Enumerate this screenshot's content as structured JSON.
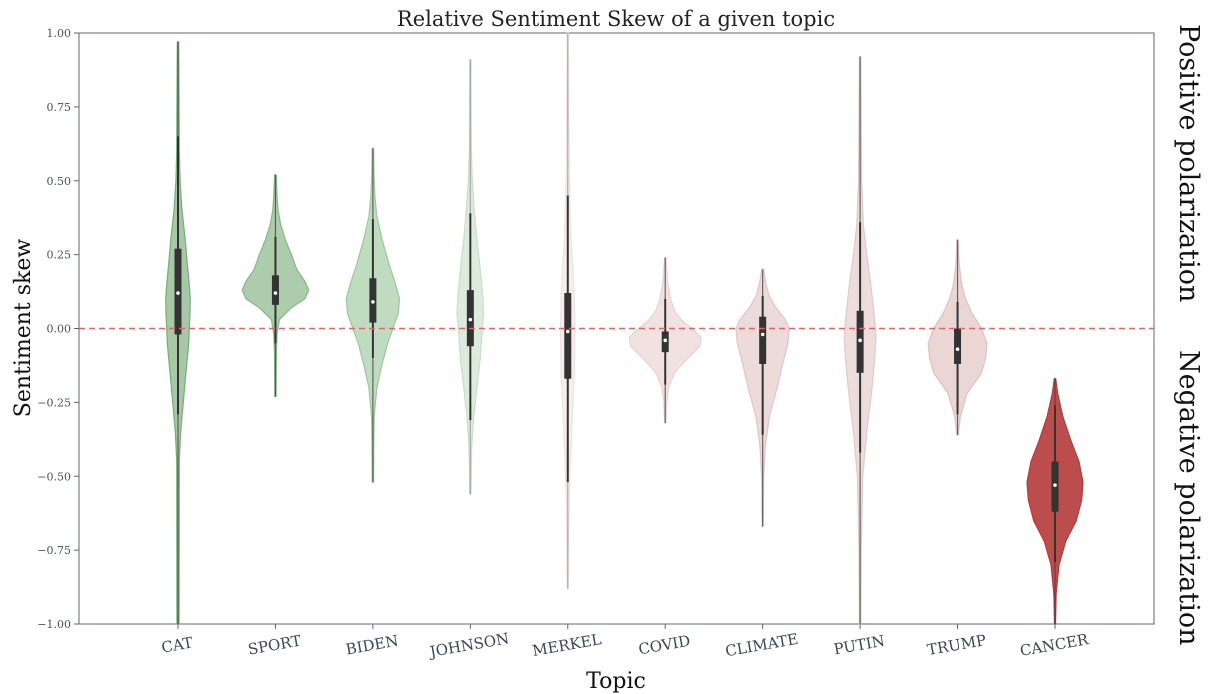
{
  "chart_data": {
    "type": "violin",
    "title": "Relative Sentiment Skew of a given topic",
    "xlabel": "Topic",
    "ylabel": "Sentiment skew",
    "ylim": [
      -1.0,
      1.0
    ],
    "yticks": [
      1.0,
      0.75,
      0.5,
      0.25,
      0.0,
      -0.25,
      -0.5,
      -0.75,
      -1.0
    ],
    "ytick_labels": [
      "1.00",
      "0.75",
      "0.50",
      "0.25",
      "0.00",
      "−0.25",
      "−0.50",
      "−0.75",
      "−1.00"
    ],
    "reference_line": {
      "y": 0.0,
      "color": "#e06666",
      "style": "dashed"
    },
    "grid": false,
    "categories": [
      "CAT",
      "SPORT",
      "BIDEN",
      "JOHNSON",
      "MERKEL",
      "COVID",
      "CLIMATE",
      "PUTIN",
      "TRUMP",
      "CANCER"
    ],
    "violins": [
      {
        "name": "CAT",
        "color": "#6aa36a",
        "alpha": 0.6,
        "whisker_low": -1.0,
        "whisker_high": 0.97,
        "q1": -0.02,
        "median": 0.12,
        "q3": 0.27,
        "inner_low": -0.29,
        "inner_high": 0.65,
        "profile": [
          [
            -1.0,
            0.008
          ],
          [
            -0.45,
            0.01
          ],
          [
            -0.35,
            0.02
          ],
          [
            -0.25,
            0.04
          ],
          [
            -0.15,
            0.06
          ],
          [
            -0.05,
            0.08
          ],
          [
            0.0,
            0.085
          ],
          [
            0.05,
            0.09
          ],
          [
            0.1,
            0.092
          ],
          [
            0.15,
            0.085
          ],
          [
            0.22,
            0.07
          ],
          [
            0.3,
            0.055
          ],
          [
            0.4,
            0.03
          ],
          [
            0.5,
            0.016
          ],
          [
            0.6,
            0.01
          ],
          [
            0.75,
            0.008
          ],
          [
            0.97,
            0.005
          ]
        ]
      },
      {
        "name": "SPORT",
        "color": "#7fb07f",
        "alpha": 0.65,
        "whisker_low": -0.23,
        "whisker_high": 0.52,
        "q1": 0.08,
        "median": 0.12,
        "q3": 0.18,
        "inner_low": -0.05,
        "inner_high": 0.31,
        "profile": [
          [
            -0.23,
            0.005
          ],
          [
            -0.15,
            0.006
          ],
          [
            -0.08,
            0.007
          ],
          [
            -0.02,
            0.012
          ],
          [
            0.03,
            0.03
          ],
          [
            0.07,
            0.12
          ],
          [
            0.1,
            0.22
          ],
          [
            0.13,
            0.25
          ],
          [
            0.16,
            0.22
          ],
          [
            0.2,
            0.16
          ],
          [
            0.25,
            0.12
          ],
          [
            0.3,
            0.075
          ],
          [
            0.35,
            0.04
          ],
          [
            0.4,
            0.02
          ],
          [
            0.45,
            0.012
          ],
          [
            0.52,
            0.006
          ]
        ]
      },
      {
        "name": "BIDEN",
        "color": "#8cbf8c",
        "alpha": 0.55,
        "whisker_low": -0.52,
        "whisker_high": 0.61,
        "q1": 0.02,
        "median": 0.09,
        "q3": 0.17,
        "inner_low": -0.1,
        "inner_high": 0.37,
        "profile": [
          [
            -0.52,
            0.005
          ],
          [
            -0.4,
            0.007
          ],
          [
            -0.3,
            0.01
          ],
          [
            -0.2,
            0.03
          ],
          [
            -0.12,
            0.07
          ],
          [
            -0.05,
            0.11
          ],
          [
            0.0,
            0.15
          ],
          [
            0.05,
            0.19
          ],
          [
            0.1,
            0.2
          ],
          [
            0.15,
            0.17
          ],
          [
            0.22,
            0.12
          ],
          [
            0.3,
            0.07
          ],
          [
            0.38,
            0.03
          ],
          [
            0.45,
            0.015
          ],
          [
            0.52,
            0.008
          ],
          [
            0.61,
            0.005
          ]
        ]
      },
      {
        "name": "JOHNSON",
        "color": "#bcd8bc",
        "alpha": 0.5,
        "whisker_low": -0.56,
        "whisker_high": 0.91,
        "q1": -0.06,
        "median": 0.03,
        "q3": 0.13,
        "inner_low": -0.31,
        "inner_high": 0.39,
        "profile": [
          [
            -0.56,
            0.005
          ],
          [
            -0.4,
            0.01
          ],
          [
            -0.3,
            0.025
          ],
          [
            -0.2,
            0.05
          ],
          [
            -0.1,
            0.075
          ],
          [
            0.0,
            0.09
          ],
          [
            0.05,
            0.1
          ],
          [
            0.1,
            0.095
          ],
          [
            0.2,
            0.075
          ],
          [
            0.3,
            0.05
          ],
          [
            0.4,
            0.03
          ],
          [
            0.5,
            0.015
          ],
          [
            0.6,
            0.008
          ],
          [
            0.75,
            0.006
          ],
          [
            0.91,
            0.005
          ]
        ]
      },
      {
        "name": "MERKEL",
        "color": "#eedcdc",
        "alpha": 0.5,
        "whisker_low": -0.88,
        "whisker_high": 1.0,
        "q1": -0.17,
        "median": -0.01,
        "q3": 0.12,
        "inner_low": -0.52,
        "inner_high": 0.45,
        "profile": [
          [
            -0.88,
            0.005
          ],
          [
            -0.6,
            0.01
          ],
          [
            -0.45,
            0.02
          ],
          [
            -0.3,
            0.035
          ],
          [
            -0.15,
            0.05
          ],
          [
            0.0,
            0.055
          ],
          [
            0.1,
            0.05
          ],
          [
            0.2,
            0.04
          ],
          [
            0.3,
            0.025
          ],
          [
            0.45,
            0.015
          ],
          [
            0.6,
            0.01
          ],
          [
            0.8,
            0.007
          ],
          [
            1.0,
            0.005
          ]
        ]
      },
      {
        "name": "COVID",
        "color": "#e8c9c9",
        "alpha": 0.55,
        "whisker_low": -0.32,
        "whisker_high": 0.24,
        "q1": -0.08,
        "median": -0.04,
        "q3": -0.01,
        "inner_low": -0.19,
        "inner_high": 0.1,
        "profile": [
          [
            -0.32,
            0.005
          ],
          [
            -0.25,
            0.01
          ],
          [
            -0.2,
            0.025
          ],
          [
            -0.15,
            0.07
          ],
          [
            -0.1,
            0.17
          ],
          [
            -0.06,
            0.26
          ],
          [
            -0.03,
            0.27
          ],
          [
            0.0,
            0.2
          ],
          [
            0.03,
            0.12
          ],
          [
            0.06,
            0.07
          ],
          [
            0.1,
            0.04
          ],
          [
            0.15,
            0.02
          ],
          [
            0.2,
            0.01
          ],
          [
            0.24,
            0.005
          ]
        ]
      },
      {
        "name": "CLIMATE",
        "color": "#dfbcbc",
        "alpha": 0.55,
        "whisker_low": -0.67,
        "whisker_high": 0.2,
        "q1": -0.12,
        "median": -0.02,
        "q3": 0.04,
        "inner_low": -0.36,
        "inner_high": 0.11,
        "profile": [
          [
            -0.67,
            0.004
          ],
          [
            -0.5,
            0.008
          ],
          [
            -0.4,
            0.02
          ],
          [
            -0.3,
            0.05
          ],
          [
            -0.2,
            0.11
          ],
          [
            -0.12,
            0.15
          ],
          [
            -0.05,
            0.19
          ],
          [
            0.0,
            0.2
          ],
          [
            0.03,
            0.17
          ],
          [
            0.07,
            0.1
          ],
          [
            0.11,
            0.05
          ],
          [
            0.15,
            0.025
          ],
          [
            0.2,
            0.008
          ]
        ]
      },
      {
        "name": "PUTIN",
        "color": "#dfc0c0",
        "alpha": 0.55,
        "whisker_low": -1.0,
        "whisker_high": 0.92,
        "q1": -0.15,
        "median": -0.04,
        "q3": 0.06,
        "inner_low": -0.42,
        "inner_high": 0.36,
        "profile": [
          [
            -1.0,
            0.005
          ],
          [
            -0.75,
            0.008
          ],
          [
            -0.5,
            0.02
          ],
          [
            -0.35,
            0.05
          ],
          [
            -0.2,
            0.09
          ],
          [
            -0.1,
            0.11
          ],
          [
            -0.03,
            0.12
          ],
          [
            0.05,
            0.105
          ],
          [
            0.15,
            0.08
          ],
          [
            0.25,
            0.05
          ],
          [
            0.35,
            0.025
          ],
          [
            0.5,
            0.012
          ],
          [
            0.7,
            0.008
          ],
          [
            0.92,
            0.005
          ]
        ]
      },
      {
        "name": "TRUMP",
        "color": "#dbb5b5",
        "alpha": 0.55,
        "whisker_low": -0.36,
        "whisker_high": 0.3,
        "q1": -0.12,
        "median": -0.07,
        "q3": 0.0,
        "inner_low": -0.29,
        "inner_high": 0.09,
        "profile": [
          [
            -0.36,
            0.006
          ],
          [
            -0.3,
            0.02
          ],
          [
            -0.22,
            0.07
          ],
          [
            -0.15,
            0.18
          ],
          [
            -0.1,
            0.21
          ],
          [
            -0.05,
            0.22
          ],
          [
            0.0,
            0.18
          ],
          [
            0.05,
            0.11
          ],
          [
            0.1,
            0.06
          ],
          [
            0.15,
            0.03
          ],
          [
            0.22,
            0.012
          ],
          [
            0.3,
            0.005
          ]
        ]
      },
      {
        "name": "CANCER",
        "color": "#b53a3a",
        "alpha": 0.9,
        "whisker_low": -1.0,
        "whisker_high": -0.17,
        "q1": -0.62,
        "median": -0.53,
        "q3": -0.45,
        "inner_low": -0.79,
        "inner_high": -0.26,
        "profile": [
          [
            -1.0,
            0.004
          ],
          [
            -0.9,
            0.008
          ],
          [
            -0.8,
            0.03
          ],
          [
            -0.72,
            0.08
          ],
          [
            -0.65,
            0.16
          ],
          [
            -0.58,
            0.2
          ],
          [
            -0.52,
            0.21
          ],
          [
            -0.45,
            0.18
          ],
          [
            -0.38,
            0.12
          ],
          [
            -0.3,
            0.06
          ],
          [
            -0.22,
            0.02
          ],
          [
            -0.17,
            0.005
          ]
        ]
      }
    ]
  },
  "annotations": {
    "positive": "Positive polarization",
    "negative": "Negative polarization"
  }
}
